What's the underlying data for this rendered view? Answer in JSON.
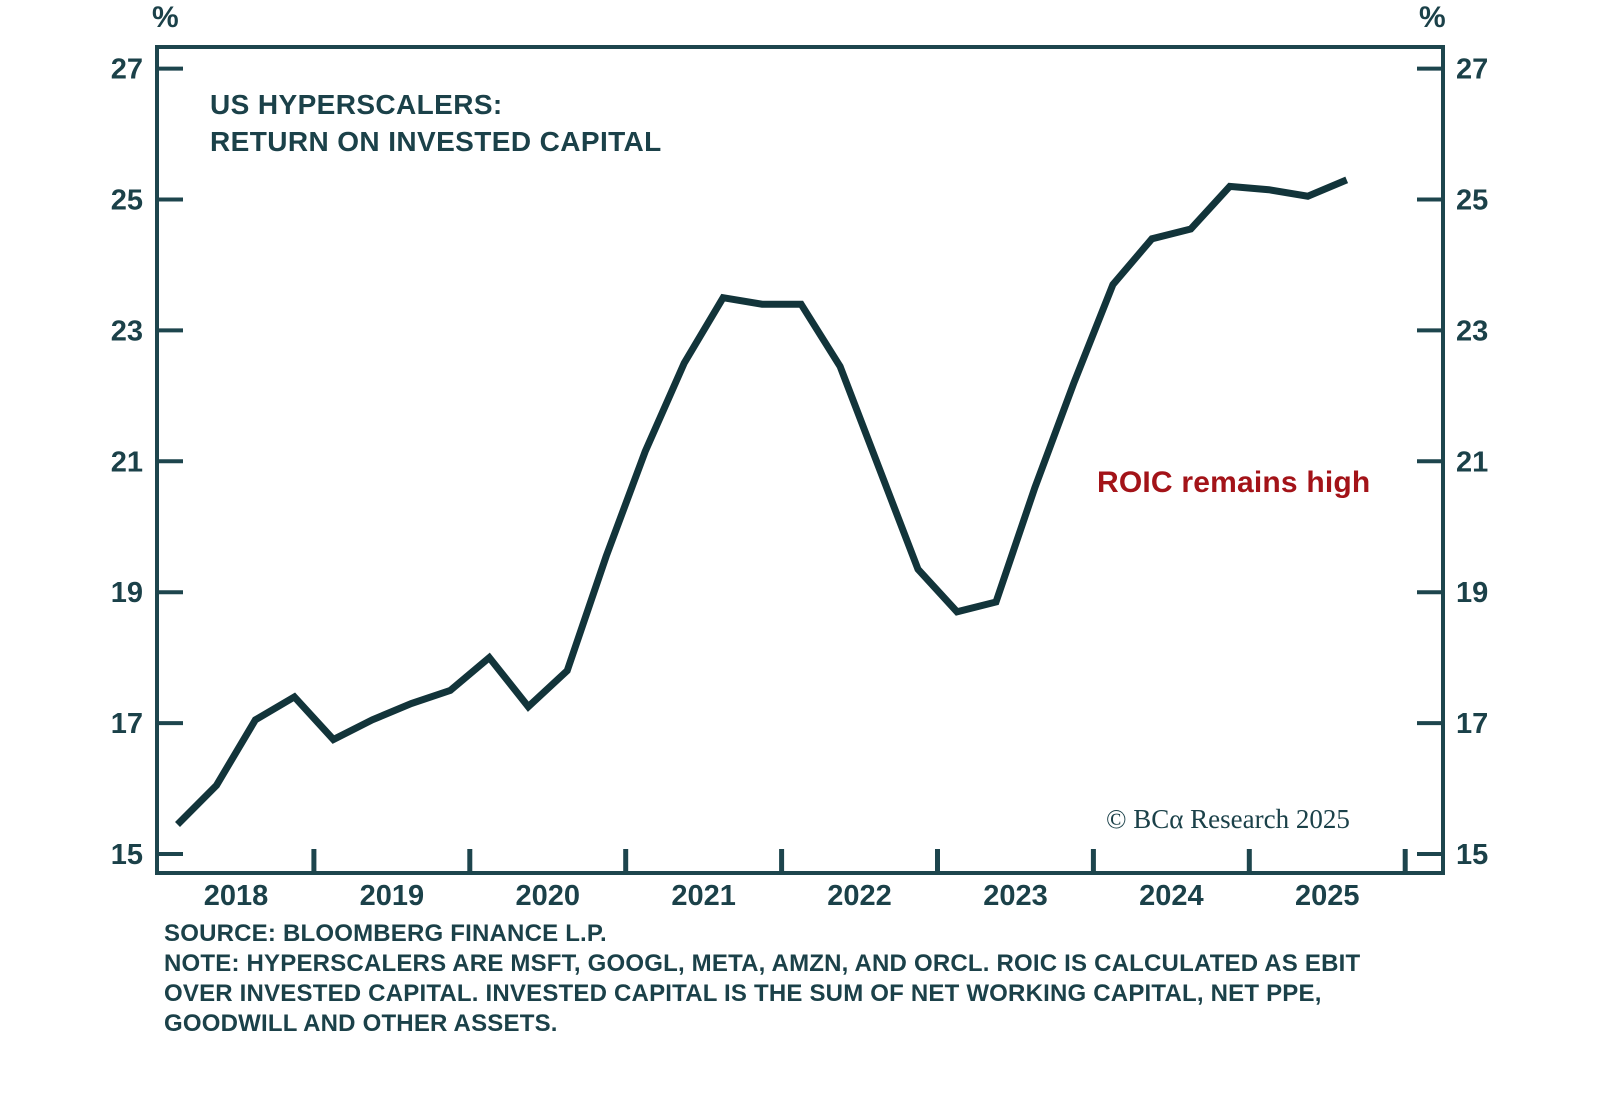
{
  "title": {
    "line1": "US HYPERSCALERS:",
    "line2": "RETURN ON INVESTED CAPITAL"
  },
  "axes": {
    "unit_left": "%",
    "unit_right": "%",
    "y_tick_labels": [
      "27",
      "25",
      "23",
      "21",
      "19",
      "17",
      "15"
    ],
    "y_tick_values": [
      27,
      25,
      23,
      21,
      19,
      17,
      15
    ],
    "x_year_labels": [
      "2018",
      "2019",
      "2020",
      "2021",
      "2022",
      "2023",
      "2024",
      "2025"
    ]
  },
  "annotation": {
    "text": "ROIC remains high",
    "color": "#a31318"
  },
  "copyright": "© BCα Research 2025",
  "source": {
    "line1": "SOURCE: BLOOMBERG FINANCE L.P.",
    "line2": "NOTE: HYPERSCALERS ARE MSFT, GOOGL, META, AMZN, AND ORCL. ROIC IS CALCULATED AS EBIT",
    "line3": "OVER INVESTED CAPITAL. INVESTED CAPITAL IS THE SUM OF NET WORKING CAPITAL, NET PPE,",
    "line4": "GOODWILL AND OTHER ASSETS."
  },
  "colors": {
    "teal_text": "#1b4149",
    "line": "#12343a",
    "frame": "#1d454d",
    "red": "#a31318",
    "background": "#ffffff"
  },
  "chart_data": {
    "type": "line",
    "title": "US HYPERSCALERS: RETURN ON INVESTED CAPITAL",
    "xlabel": "",
    "ylabel": "%",
    "ylim": [
      14.7,
      27.35
    ],
    "y_ticks": [
      15,
      17,
      19,
      21,
      23,
      25,
      27
    ],
    "grid": false,
    "legend": "none",
    "x_year_labels": [
      "2018",
      "2019",
      "2020",
      "2021",
      "2022",
      "2023",
      "2024",
      "2025"
    ],
    "series": [
      {
        "name": "US hyperscalers return on invested capital",
        "color": "#12343a",
        "x": [
          "2018-Q1",
          "2018-Q2",
          "2018-Q3",
          "2018-Q4",
          "2019-Q1",
          "2019-Q2",
          "2019-Q3",
          "2019-Q4",
          "2020-Q1",
          "2020-Q2",
          "2020-Q3",
          "2020-Q4",
          "2021-Q1",
          "2021-Q2",
          "2021-Q3",
          "2021-Q4",
          "2022-Q1",
          "2022-Q2",
          "2022-Q3",
          "2022-Q4",
          "2023-Q1",
          "2023-Q2",
          "2023-Q3",
          "2023-Q4",
          "2024-Q1",
          "2024-Q2",
          "2024-Q3",
          "2024-Q4",
          "2025-Q1",
          "2025-Q2",
          "2025-Q3"
        ],
        "values": [
          15.45,
          16.05,
          17.05,
          17.4,
          16.75,
          17.05,
          17.3,
          17.5,
          18.0,
          17.25,
          17.8,
          19.55,
          21.15,
          22.5,
          23.5,
          23.4,
          23.4,
          22.45,
          20.9,
          19.35,
          18.7,
          18.85,
          20.6,
          22.2,
          23.7,
          24.4,
          24.55,
          25.2,
          25.15,
          25.05,
          25.3
        ]
      }
    ],
    "annotations": [
      {
        "text": "ROIC remains high",
        "color": "#a31318",
        "x": "2023-Q4",
        "y": 20.7
      }
    ]
  }
}
